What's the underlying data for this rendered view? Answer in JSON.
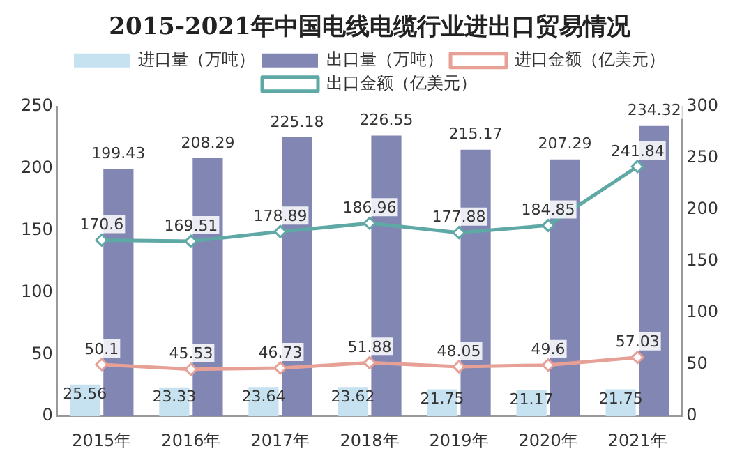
{
  "chart_data": {
    "type": "bar",
    "title": "2015-2021年中国电线电缆行业进出口贸易情况",
    "categories": [
      "2015年",
      "2016年",
      "2017年",
      "2018年",
      "2019年",
      "2020年",
      "2021年"
    ],
    "series": [
      {
        "name": "进口量（万吨）",
        "color": "#c6e1ef",
        "values": [
          25.56,
          23.33,
          23.64,
          23.62,
          21.75,
          21.17,
          21.75
        ]
      },
      {
        "name": "出口量（万吨）",
        "color": "#8286b3",
        "values": [
          199.43,
          208.29,
          225.18,
          226.55,
          215.17,
          207.29,
          234.32
        ]
      },
      {
        "name": "进口金额（亿美元）",
        "type": "line",
        "axis": "y2",
        "color": "#e6a096",
        "values": [
          50.1,
          45.53,
          46.73,
          51.88,
          48.05,
          49.6,
          57.03
        ]
      },
      {
        "name": "出口金额（亿美元）",
        "type": "line",
        "axis": "y2",
        "color": "#5ea8a5",
        "values": [
          170.6,
          169.51,
          178.89,
          186.96,
          177.88,
          184.85,
          241.84
        ]
      }
    ],
    "ylim": [
      0,
      250
    ],
    "yticks": [
      0,
      50,
      100,
      150,
      200,
      250
    ],
    "y2lim": [
      0,
      300
    ],
    "y2ticks": [
      0,
      50,
      100,
      150,
      200,
      250,
      300
    ],
    "marker": "diamond",
    "data_labels": true,
    "legend": "top",
    "grid": false
  }
}
